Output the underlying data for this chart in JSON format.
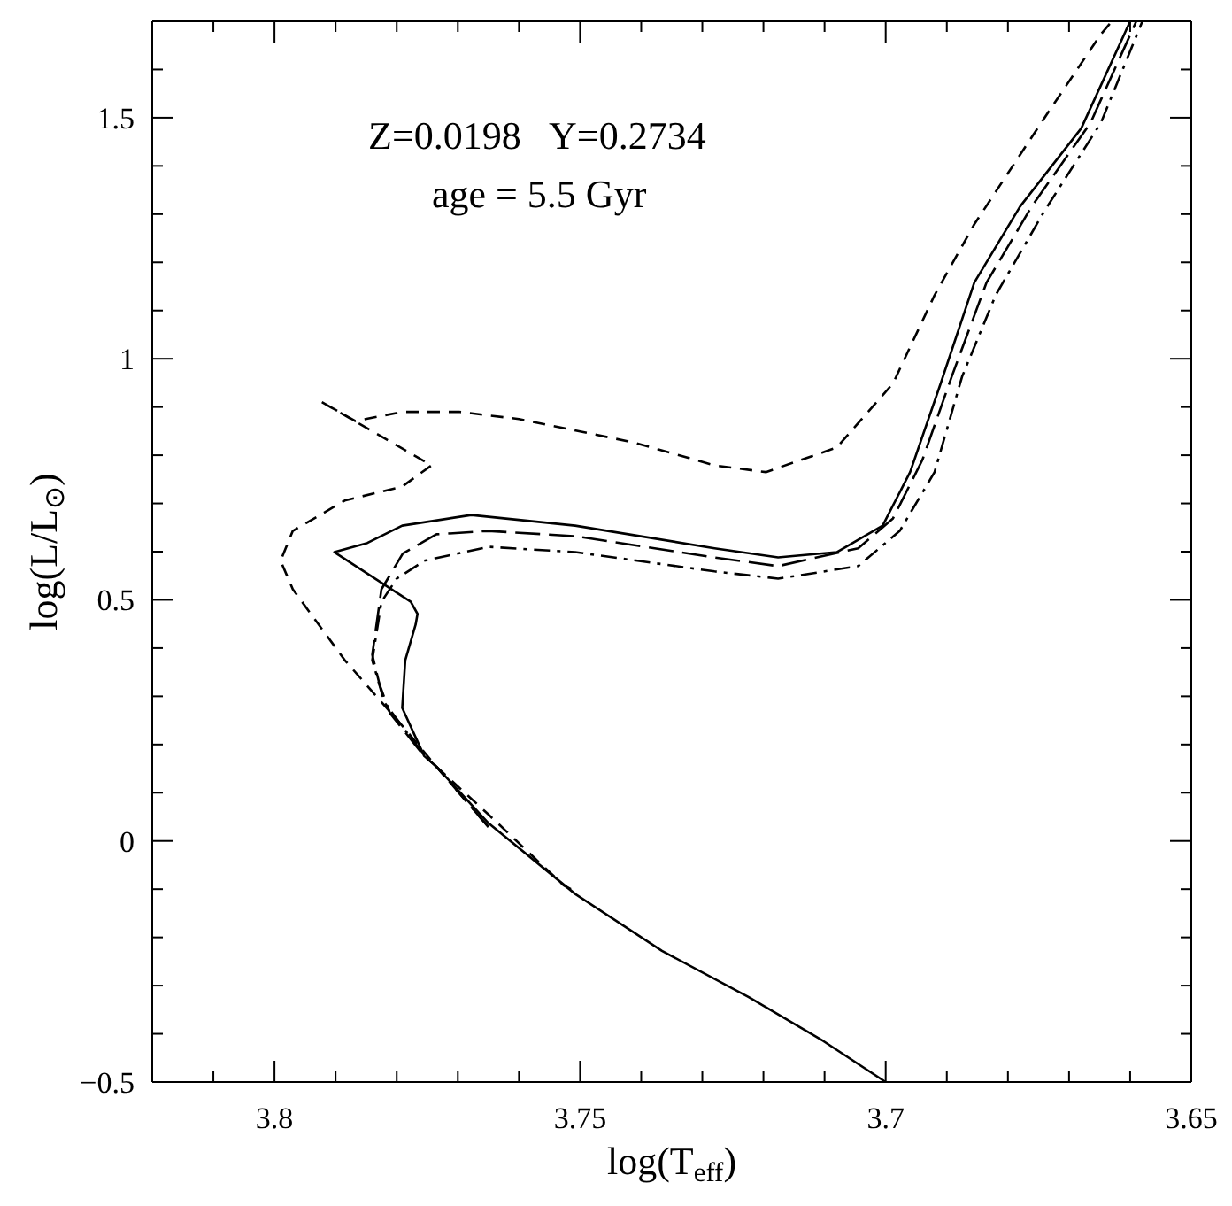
{
  "chart_data": {
    "type": "line",
    "xlabel": "log(T$_{eff}$)",
    "ylabel": "log(L/L$_{⊙}$)",
    "annotations": [
      "Z=0.0198   Y=0.2734",
      "age = 5.5 Gyr"
    ],
    "xlim": [
      3.82,
      3.65
    ],
    "ylim": [
      -0.5,
      1.7
    ],
    "xticks": [
      {
        "value": 3.81,
        "label": null
      },
      3.8,
      {
        "value": 3.79,
        "label": null
      },
      {
        "value": 3.78,
        "label": null
      },
      {
        "value": 3.77,
        "label": null
      },
      {
        "value": 3.76,
        "label": null
      },
      3.75,
      {
        "value": 3.74,
        "label": null
      },
      {
        "value": 3.73,
        "label": null
      },
      {
        "value": 3.72,
        "label": null
      },
      {
        "value": 3.71,
        "label": null
      },
      3.7,
      {
        "value": 3.69,
        "label": null
      },
      {
        "value": 3.68,
        "label": null
      },
      {
        "value": 3.67,
        "label": null
      },
      {
        "value": 3.66,
        "label": null
      },
      3.65
    ],
    "yticks": [
      {
        "value": -0.5,
        "label": "−0.5"
      },
      {
        "value": -0.4,
        "label": null
      },
      {
        "value": -0.3,
        "label": null
      },
      {
        "value": -0.2,
        "label": null
      },
      {
        "value": -0.1,
        "label": null
      },
      0,
      {
        "value": 0.1,
        "label": null
      },
      {
        "value": 0.2,
        "label": null
      },
      {
        "value": 0.3,
        "label": null
      },
      {
        "value": 0.4,
        "label": null
      },
      0.5,
      {
        "value": 0.6,
        "label": null
      },
      {
        "value": 0.7,
        "label": null
      },
      {
        "value": 0.8,
        "label": null
      },
      {
        "value": 0.9,
        "label": null
      },
      1,
      {
        "value": 1.1,
        "label": null
      },
      {
        "value": 1.2,
        "label": null
      },
      {
        "value": 1.3,
        "label": null
      },
      {
        "value": 1.4,
        "label": null
      },
      1.5,
      {
        "value": 1.6,
        "label": null
      }
    ],
    "marker": "none",
    "series": [
      {
        "color": "#000000",
        "line_style": "dashed",
        "x": [
          3.7515,
          3.7527,
          3.765,
          3.7735,
          3.7791,
          3.7885,
          3.797,
          3.799,
          3.797,
          3.7885,
          3.7791,
          3.7743,
          3.7925,
          3.7868,
          3.779,
          3.7698,
          3.76,
          3.7414,
          3.728,
          3.7196,
          3.708,
          3.6988,
          3.692,
          3.6855,
          3.674,
          3.6648,
          3.663
        ],
        "values": [
          -0.1,
          -0.092,
          0.055,
          0.154,
          0.239,
          0.375,
          0.522,
          0.581,
          0.643,
          0.706,
          0.735,
          0.779,
          0.912,
          0.871,
          0.89,
          0.89,
          0.875,
          0.827,
          0.779,
          0.765,
          0.816,
          0.949,
          1.132,
          1.279,
          1.5,
          1.673,
          1.7
        ]
      },
      {
        "color": "#000000",
        "line_style": "solid",
        "x": [
          3.7,
          3.7102,
          3.7224,
          3.7366,
          3.7508,
          3.765,
          3.7735,
          3.7755,
          3.7791,
          3.7786,
          3.7769,
          3.7766,
          3.7777,
          3.7902,
          3.7848,
          3.7791,
          3.7678,
          3.7508,
          3.728,
          3.7176,
          3.708,
          3.7005,
          3.696,
          3.691,
          3.6855,
          3.678,
          3.668,
          3.66
        ],
        "values": [
          -0.5,
          -0.415,
          -0.324,
          -0.228,
          -0.11,
          0.037,
          0.154,
          0.176,
          0.276,
          0.375,
          0.449,
          0.471,
          0.496,
          0.599,
          0.618,
          0.654,
          0.676,
          0.654,
          0.607,
          0.588,
          0.599,
          0.654,
          0.765,
          0.949,
          1.158,
          1.316,
          1.478,
          1.7
        ]
      },
      {
        "color": "#000000",
        "line_style": "longdash",
        "x": [
          3.765,
          3.7735,
          3.7755,
          3.7811,
          3.7828,
          3.784,
          3.7825,
          3.779,
          3.7735,
          3.765,
          3.7508,
          3.728,
          3.7176,
          3.7045,
          3.6988,
          3.694,
          3.6892,
          3.6835,
          3.6761,
          3.6665,
          3.659
        ],
        "values": [
          0.029,
          0.154,
          0.176,
          0.265,
          0.324,
          0.386,
          0.522,
          0.596,
          0.636,
          0.643,
          0.632,
          0.588,
          0.57,
          0.607,
          0.669,
          0.79,
          0.963,
          1.158,
          1.316,
          1.489,
          1.7
        ]
      },
      {
        "color": "#000000",
        "line_style": "dashdot",
        "x": [
          3.765,
          3.7735,
          3.777,
          3.782,
          3.784,
          3.7825,
          3.78,
          3.7755,
          3.765,
          3.7508,
          3.728,
          3.7176,
          3.7045,
          3.6977,
          3.692,
          3.6875,
          3.682,
          3.6741,
          3.6648,
          3.658
        ],
        "values": [
          0.029,
          0.154,
          0.202,
          0.287,
          0.375,
          0.496,
          0.544,
          0.581,
          0.61,
          0.599,
          0.559,
          0.544,
          0.57,
          0.643,
          0.765,
          0.963,
          1.132,
          1.305,
          1.489,
          1.7
        ]
      }
    ]
  }
}
